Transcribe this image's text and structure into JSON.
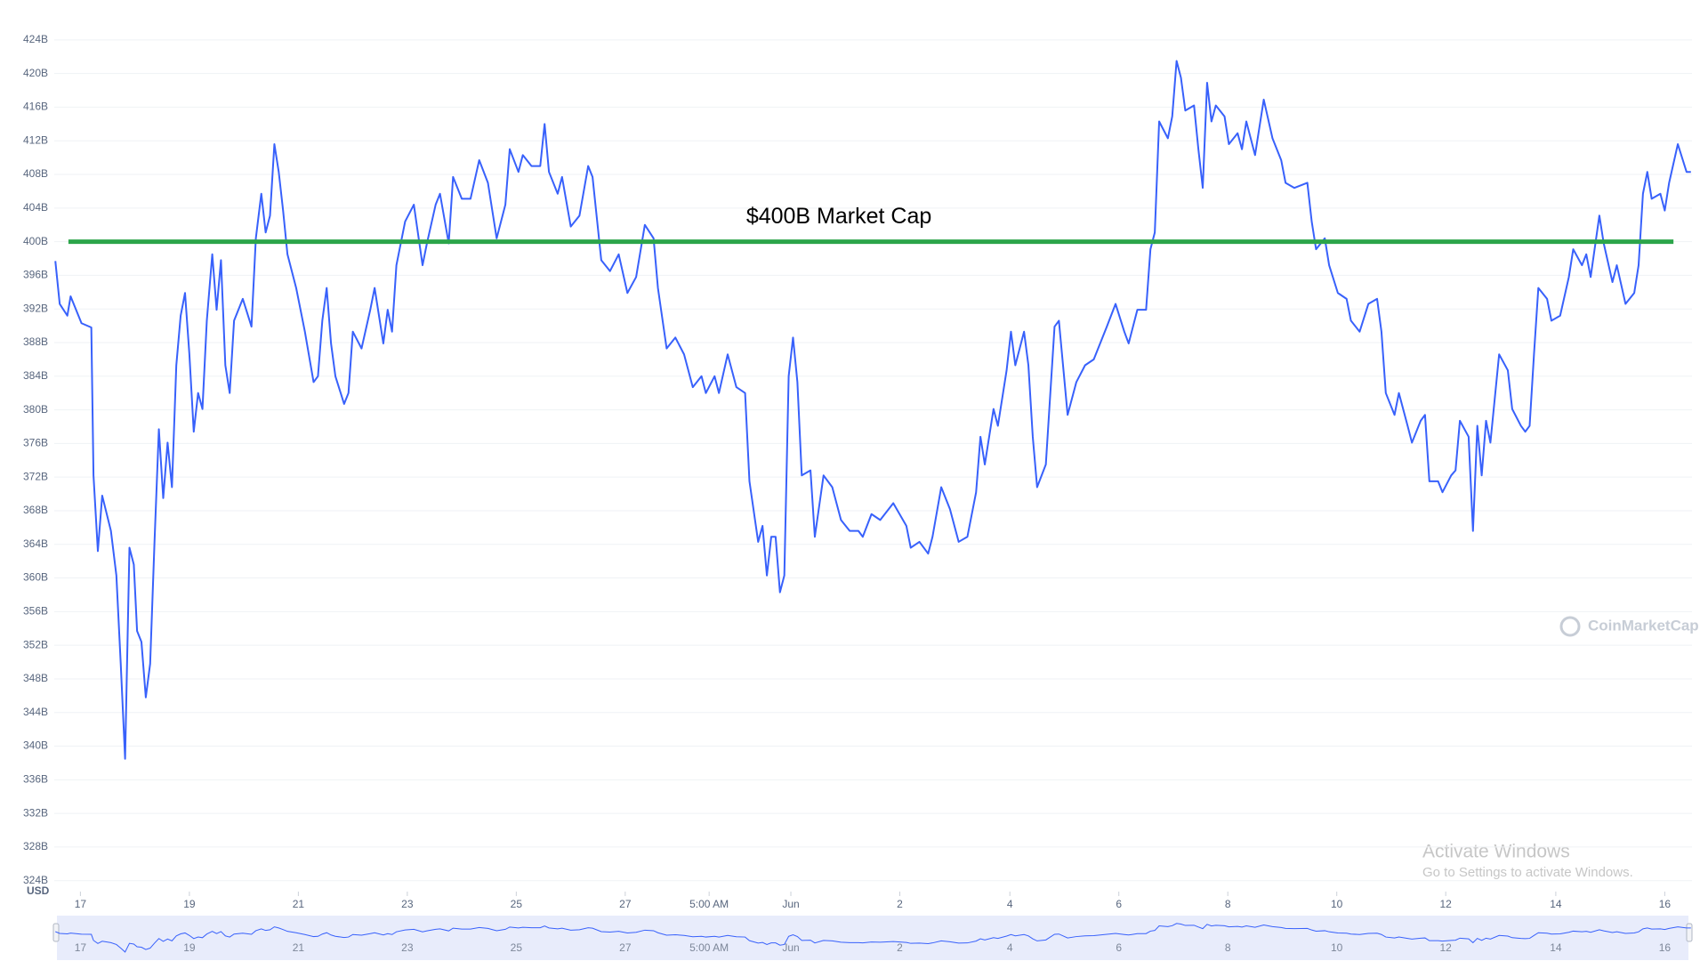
{
  "chart_data": {
    "type": "line",
    "color": "#3861fb",
    "grid": true,
    "y_unit_label": "USD",
    "watermark": "CoinMarketCap",
    "overlay": {
      "title": "Activate Windows",
      "subtitle": "Go to Settings to activate Windows."
    },
    "annotations": [
      {
        "text": "$400B Market Cap",
        "y": 400,
        "x": [
          -0.22,
          29.24
        ],
        "color": "#2ca54a"
      }
    ],
    "xlim": [
      -0.48,
      29.58
    ],
    "ylim": [
      322.7,
      426.1
    ],
    "xticks": [
      {
        "value": 0,
        "label": "17"
      },
      {
        "value": 2,
        "label": "19"
      },
      {
        "value": 4,
        "label": "21"
      },
      {
        "value": 6,
        "label": "23"
      },
      {
        "value": 8,
        "label": "25"
      },
      {
        "value": 10,
        "label": "27"
      },
      {
        "value": 11.54,
        "label": "5:00 AM"
      },
      {
        "value": 13.04,
        "label": "Jun"
      },
      {
        "value": 15.04,
        "label": "2"
      },
      {
        "value": 17.06,
        "label": "4"
      },
      {
        "value": 19.06,
        "label": "6"
      },
      {
        "value": 21.06,
        "label": "8"
      },
      {
        "value": 23.06,
        "label": "10"
      },
      {
        "value": 25.06,
        "label": "12"
      },
      {
        "value": 27.08,
        "label": "14"
      },
      {
        "value": 29.08,
        "label": "16"
      }
    ],
    "yticks": [
      {
        "value": 324,
        "label": "324B"
      },
      {
        "value": 328,
        "label": "328B"
      },
      {
        "value": 332,
        "label": "332B"
      },
      {
        "value": 336,
        "label": "336B"
      },
      {
        "value": 340,
        "label": "340B"
      },
      {
        "value": 344,
        "label": "344B"
      },
      {
        "value": 348,
        "label": "348B"
      },
      {
        "value": 352,
        "label": "352B"
      },
      {
        "value": 356,
        "label": "356B"
      },
      {
        "value": 360,
        "label": "360B"
      },
      {
        "value": 364,
        "label": "364B"
      },
      {
        "value": 368,
        "label": "368B"
      },
      {
        "value": 372,
        "label": "372B"
      },
      {
        "value": 376,
        "label": "376B"
      },
      {
        "value": 380,
        "label": "380B"
      },
      {
        "value": 384,
        "label": "384B"
      },
      {
        "value": 388,
        "label": "388B"
      },
      {
        "value": 392,
        "label": "392B"
      },
      {
        "value": 396,
        "label": "396B"
      },
      {
        "value": 400,
        "label": "400B"
      },
      {
        "value": 404,
        "label": "404B"
      },
      {
        "value": 408,
        "label": "408B"
      },
      {
        "value": 412,
        "label": "412B"
      },
      {
        "value": 416,
        "label": "416B"
      },
      {
        "value": 420,
        "label": "420B"
      },
      {
        "value": 424,
        "label": "424B"
      }
    ],
    "x": [
      -0.46,
      -0.38,
      -0.24,
      -0.18,
      0.02,
      0.2,
      0.24,
      0.32,
      0.4,
      0.56,
      0.66,
      0.74,
      0.82,
      0.9,
      0.98,
      1.04,
      1.12,
      1.2,
      1.28,
      1.36,
      1.44,
      1.52,
      1.6,
      1.68,
      1.76,
      1.84,
      1.92,
      2.0,
      2.08,
      2.16,
      2.24,
      2.32,
      2.42,
      2.5,
      2.58,
      2.66,
      2.74,
      2.82,
      2.98,
      3.14,
      3.22,
      3.32,
      3.4,
      3.48,
      3.56,
      3.64,
      3.72,
      3.8,
      3.96,
      4.12,
      4.28,
      4.36,
      4.44,
      4.52,
      4.6,
      4.68,
      4.84,
      4.92,
      5.0,
      5.16,
      5.32,
      5.4,
      5.56,
      5.64,
      5.72,
      5.8,
      5.96,
      6.12,
      6.28,
      6.36,
      6.52,
      6.6,
      6.76,
      6.84,
      7.0,
      7.16,
      7.32,
      7.48,
      7.64,
      7.8,
      7.88,
      8.04,
      8.12,
      8.28,
      8.44,
      8.52,
      8.6,
      8.76,
      8.84,
      9.0,
      9.16,
      9.32,
      9.4,
      9.56,
      9.72,
      9.88,
      10.04,
      10.2,
      10.36,
      10.52,
      10.6,
      10.76,
      10.92,
      11.08,
      11.24,
      11.4,
      11.48,
      11.64,
      11.72,
      11.88,
      12.04,
      12.2,
      12.28,
      12.44,
      12.52,
      12.6,
      12.68,
      12.76,
      12.84,
      12.92,
      13.0,
      13.08,
      13.16,
      13.24,
      13.4,
      13.48,
      13.64,
      13.8,
      13.96,
      14.12,
      14.28,
      14.36,
      14.52,
      14.68,
      14.92,
      15.16,
      15.24,
      15.4,
      15.56,
      15.64,
      15.8,
      15.96,
      16.12,
      16.28,
      16.44,
      16.52,
      16.6,
      16.76,
      16.84,
      17.0,
      17.08,
      17.16,
      17.32,
      17.4,
      17.48,
      17.56,
      17.72,
      17.88,
      17.96,
      18.12,
      18.28,
      18.44,
      18.6,
      18.84,
      19.0,
      19.16,
      19.24,
      19.4,
      19.56,
      19.64,
      19.72,
      19.8,
      19.96,
      20.04,
      20.12,
      20.2,
      20.28,
      20.44,
      20.52,
      20.6,
      20.68,
      20.76,
      20.84,
      21.0,
      21.08,
      21.24,
      21.32,
      21.4,
      21.56,
      21.72,
      21.88,
      22.04,
      22.12,
      22.28,
      22.52,
      22.6,
      22.68,
      22.84,
      22.92,
      23.08,
      23.24,
      23.32,
      23.48,
      23.64,
      23.8,
      23.88,
      23.96,
      24.12,
      24.2,
      24.36,
      24.44,
      24.6,
      24.68,
      24.76,
      24.92,
      25.0,
      25.16,
      25.24,
      25.32,
      25.48,
      25.56,
      25.64,
      25.72,
      25.8,
      25.88,
      26.04,
      26.2,
      26.28,
      26.44,
      26.52,
      26.6,
      26.68,
      26.76,
      26.92,
      27.0,
      27.16,
      27.32,
      27.4,
      27.56,
      27.64,
      27.72,
      27.88,
      27.96,
      28.12,
      28.2,
      28.36,
      28.52,
      28.6,
      28.68,
      28.76,
      28.84,
      29.0,
      29.08,
      29.16,
      29.32,
      29.48,
      29.56
    ],
    "values": [
      397.7,
      392.6,
      391.2,
      393.5,
      390.3,
      389.8,
      372.2,
      363.2,
      369.8,
      365.6,
      360.3,
      349.8,
      338.5,
      363.6,
      361.6,
      353.7,
      352.4,
      345.8,
      349.8,
      364.3,
      377.7,
      369.5,
      376.1,
      370.8,
      385.3,
      391.2,
      393.9,
      386.6,
      377.4,
      382.0,
      380.1,
      390.6,
      398.5,
      391.9,
      397.8,
      385.3,
      382.0,
      390.6,
      393.2,
      389.9,
      400.4,
      405.7,
      401.1,
      403.1,
      411.6,
      408.3,
      403.7,
      398.5,
      394.5,
      389.3,
      383.3,
      384.0,
      390.6,
      394.5,
      387.9,
      384.0,
      380.7,
      382.0,
      389.3,
      387.3,
      391.9,
      394.5,
      387.9,
      391.9,
      389.3,
      397.2,
      402.4,
      404.4,
      397.2,
      399.8,
      404.4,
      405.7,
      399.8,
      407.7,
      405.1,
      405.1,
      409.7,
      407.0,
      400.4,
      404.4,
      411.0,
      408.3,
      410.3,
      409.0,
      409.0,
      414.0,
      408.3,
      405.7,
      407.7,
      401.8,
      403.1,
      409.0,
      407.7,
      397.8,
      396.5,
      398.5,
      393.9,
      395.8,
      402.0,
      400.4,
      394.5,
      387.3,
      388.6,
      386.6,
      382.7,
      384.0,
      382.0,
      384.0,
      382.0,
      386.6,
      382.7,
      382.0,
      371.5,
      364.3,
      366.2,
      360.3,
      364.9,
      364.9,
      358.3,
      360.3,
      384.0,
      388.6,
      383.3,
      372.2,
      372.8,
      364.9,
      372.2,
      370.8,
      366.9,
      365.6,
      365.6,
      364.9,
      367.6,
      366.9,
      368.9,
      366.2,
      363.6,
      364.3,
      362.9,
      364.9,
      370.8,
      368.2,
      364.3,
      364.9,
      370.2,
      376.8,
      373.5,
      380.1,
      378.1,
      384.7,
      389.3,
      385.3,
      389.3,
      385.3,
      376.8,
      370.8,
      373.5,
      389.9,
      390.6,
      379.4,
      383.3,
      385.3,
      386.0,
      389.9,
      392.6,
      389.3,
      387.9,
      391.9,
      391.9,
      399.1,
      401.1,
      414.3,
      412.3,
      414.9,
      421.5,
      419.5,
      415.6,
      416.2,
      411.0,
      406.4,
      418.9,
      414.3,
      416.2,
      414.9,
      411.6,
      412.9,
      411.0,
      414.3,
      410.3,
      416.9,
      412.3,
      409.7,
      407.0,
      406.4,
      407.0,
      402.4,
      399.1,
      400.4,
      397.2,
      393.9,
      393.2,
      390.6,
      389.3,
      392.6,
      393.2,
      389.3,
      382.0,
      379.4,
      382.0,
      378.1,
      376.1,
      378.7,
      379.4,
      371.5,
      371.5,
      370.2,
      372.2,
      372.8,
      378.7,
      376.8,
      365.6,
      378.1,
      372.2,
      378.7,
      376.1,
      386.6,
      384.7,
      380.1,
      378.1,
      377.4,
      378.1,
      386.6,
      394.5,
      393.2,
      390.6,
      391.2,
      395.8,
      399.1,
      397.2,
      398.5,
      395.8,
      403.1,
      399.8,
      395.2,
      397.2,
      392.6,
      393.9,
      397.2,
      405.7,
      408.3,
      405.1,
      405.7,
      403.7,
      407.0,
      411.6,
      408.3,
      408.3
    ]
  }
}
